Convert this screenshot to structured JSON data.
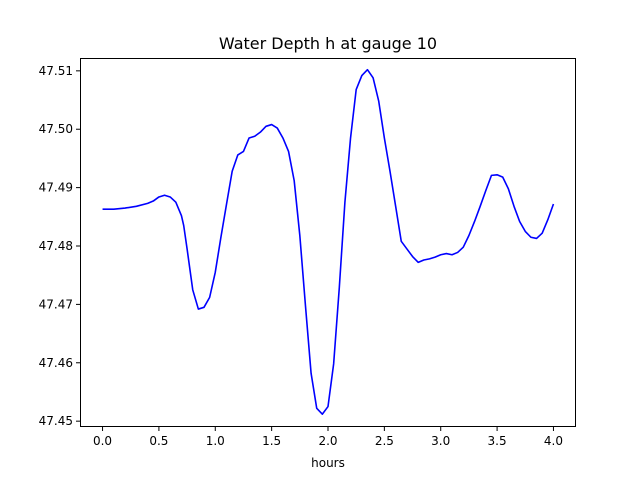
{
  "chart_data": {
    "type": "line",
    "title": "Water Depth h at gauge 10",
    "xlabel": "hours",
    "ylabel": "",
    "xlim": [
      -0.2,
      4.2
    ],
    "ylim": [
      47.449,
      47.5122
    ],
    "xticks": [
      0.0,
      0.5,
      1.0,
      1.5,
      2.0,
      2.5,
      3.0,
      3.5,
      4.0
    ],
    "xtick_labels": [
      "0.0",
      "0.5",
      "1.0",
      "1.5",
      "2.0",
      "2.5",
      "3.0",
      "3.5",
      "4.0"
    ],
    "yticks": [
      47.45,
      47.46,
      47.47,
      47.48,
      47.49,
      47.5,
      47.51
    ],
    "ytick_labels": [
      "47.45",
      "47.46",
      "47.47",
      "47.48",
      "47.49",
      "47.50",
      "47.51"
    ],
    "grid": false,
    "series": [
      {
        "color": "#0000ff",
        "x": [
          0.0,
          0.1,
          0.2,
          0.3,
          0.4,
          0.45,
          0.5,
          0.55,
          0.6,
          0.65,
          0.7,
          0.72,
          0.75,
          0.8,
          0.85,
          0.9,
          0.95,
          1.0,
          1.05,
          1.1,
          1.15,
          1.2,
          1.25,
          1.3,
          1.35,
          1.4,
          1.45,
          1.5,
          1.55,
          1.6,
          1.65,
          1.7,
          1.75,
          1.8,
          1.85,
          1.9,
          1.95,
          2.0,
          2.05,
          2.1,
          2.15,
          2.2,
          2.25,
          2.3,
          2.35,
          2.4,
          2.45,
          2.5,
          2.55,
          2.6,
          2.65,
          2.7,
          2.75,
          2.8,
          2.85,
          2.9,
          2.95,
          3.0,
          3.05,
          3.1,
          3.15,
          3.2,
          3.25,
          3.3,
          3.35,
          3.4,
          3.45,
          3.5,
          3.55,
          3.6,
          3.65,
          3.7,
          3.75,
          3.8,
          3.85,
          3.9,
          3.95,
          4.0
        ],
        "values": [
          47.4863,
          47.4863,
          47.4865,
          47.4868,
          47.4873,
          47.4877,
          47.4884,
          47.4887,
          47.4884,
          47.4875,
          47.4852,
          47.4835,
          47.4795,
          47.4725,
          47.4692,
          47.4695,
          47.4712,
          47.4755,
          47.4815,
          47.4872,
          47.4928,
          47.4956,
          47.4962,
          47.4985,
          47.4988,
          47.4995,
          47.5005,
          47.5008,
          47.5002,
          47.4985,
          47.4962,
          47.4912,
          47.4818,
          47.4698,
          47.4582,
          47.4522,
          47.4512,
          47.4525,
          47.4598,
          47.4728,
          47.4875,
          47.4985,
          47.5068,
          47.5092,
          47.5102,
          47.5088,
          47.5048,
          47.4985,
          47.4928,
          47.4868,
          47.4808,
          47.4795,
          47.4782,
          47.4772,
          47.4776,
          47.4778,
          47.4781,
          47.4785,
          47.4787,
          47.4785,
          47.4789,
          47.4798,
          47.4818,
          47.4842,
          47.4868,
          47.4895,
          47.4921,
          47.4922,
          47.4918,
          47.4898,
          47.4868,
          47.4842,
          47.4825,
          47.4815,
          47.4813,
          47.4822,
          47.4845,
          47.4872
        ]
      }
    ]
  }
}
